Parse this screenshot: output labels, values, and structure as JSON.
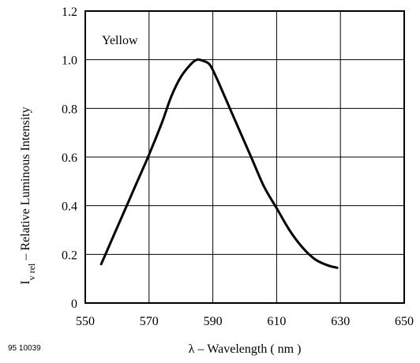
{
  "figure_id": "95 10039",
  "chart_data": {
    "type": "line",
    "title": "",
    "xlabel": "λ – Wavelength ( nm )",
    "ylabel_main": "I",
    "ylabel_sub": "v rel",
    "ylabel_rest": " – Relative Luminous Intensity",
    "xlim": [
      550,
      650
    ],
    "ylim": [
      0,
      1.2
    ],
    "x_ticks": [
      "550",
      "570",
      "590",
      "610",
      "630",
      "650"
    ],
    "y_ticks": [
      "0",
      "0.2",
      "0.4",
      "0.6",
      "0.8",
      "1.0",
      "1.2"
    ],
    "grid": true,
    "annotation": "Yellow",
    "series": [
      {
        "x": [
          555,
          558,
          562,
          566,
          570,
          574,
          577,
          580,
          583,
          585,
          587,
          589,
          591,
          594,
          598,
          602,
          606,
          610,
          614,
          618,
          622,
          626,
          629
        ],
        "y": [
          0.16,
          0.25,
          0.37,
          0.49,
          0.61,
          0.74,
          0.85,
          0.93,
          0.98,
          1.0,
          0.995,
          0.98,
          0.93,
          0.84,
          0.72,
          0.6,
          0.48,
          0.39,
          0.3,
          0.23,
          0.18,
          0.155,
          0.145
        ]
      }
    ]
  }
}
